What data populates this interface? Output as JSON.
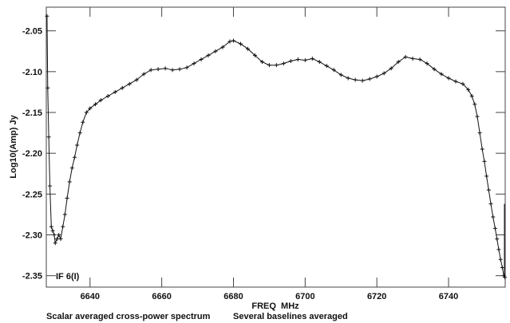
{
  "chart_data": {
    "type": "line",
    "title": "",
    "xlabel": "FREQ  MHz",
    "ylabel": "Log10(Amp) Jy",
    "annotation": "IF 6(I)",
    "footer_left": "Scalar averaged cross-power spectrum",
    "footer_right": "Several baselines averaged",
    "xlim": [
      6627.8,
      6755.8
    ],
    "ylim": [
      -2.364,
      -2.021
    ],
    "x_ticks": [
      6640,
      6660,
      6680,
      6700,
      6720,
      6740
    ],
    "x_tick_labels": [
      "6640",
      "6660",
      "6680",
      "6700",
      "6720",
      "6740"
    ],
    "y_ticks": [
      -2.05,
      -2.1,
      -2.15,
      -2.2,
      -2.25,
      -2.3,
      -2.35
    ],
    "y_tick_labels": [
      "-2.05",
      "-2.10",
      "-2.15",
      "-2.20",
      "-2.25",
      "-2.30",
      "-2.35"
    ],
    "grid": false,
    "series": [
      {
        "name": "IF 6(I)",
        "color": "#111111",
        "x": [
          6628.0,
          6628.2,
          6628.5,
          6628.8,
          6629.2,
          6629.6,
          6630.0,
          6630.3,
          6630.8,
          6631.3,
          6631.8,
          6632.4,
          6633.0,
          6633.6,
          6634.3,
          6635.0,
          6635.7,
          6636.4,
          6637.2,
          6638.0,
          6639.0,
          6640.0,
          6641.5,
          6643.0,
          6645.0,
          6647.0,
          6649.0,
          6651.0,
          6653.0,
          6655.0,
          6657.0,
          6659.0,
          6661.0,
          6663.0,
          6665.0,
          6667.0,
          6669.0,
          6671.0,
          6673.0,
          6675.0,
          6677.0,
          6679.0,
          6680.0,
          6682.0,
          6684.0,
          6686.0,
          6688.0,
          6690.0,
          6692.0,
          6694.0,
          6696.0,
          6698.0,
          6700.0,
          6702.0,
          6704.0,
          6706.0,
          6708.0,
          6710.0,
          6712.0,
          6714.0,
          6716.0,
          6718.0,
          6720.0,
          6722.0,
          6724.0,
          6726.0,
          6728.0,
          6730.0,
          6732.0,
          6734.0,
          6736.0,
          6738.0,
          6740.0,
          6742.0,
          6744.0,
          6745.5,
          6746.5,
          6747.3,
          6748.0,
          6748.7,
          6749.4,
          6750.0,
          6750.6,
          6751.2,
          6751.8,
          6752.4,
          6753.0,
          6753.5,
          6754.0,
          6754.5,
          6755.0,
          6755.4,
          6755.7
        ],
        "y": [
          -2.032,
          -2.12,
          -2.18,
          -2.24,
          -2.29,
          -2.295,
          -2.3,
          -2.31,
          -2.305,
          -2.3,
          -2.305,
          -2.29,
          -2.275,
          -2.255,
          -2.235,
          -2.218,
          -2.205,
          -2.19,
          -2.175,
          -2.162,
          -2.15,
          -2.145,
          -2.14,
          -2.135,
          -2.13,
          -2.125,
          -2.12,
          -2.115,
          -2.11,
          -2.103,
          -2.098,
          -2.097,
          -2.096,
          -2.098,
          -2.097,
          -2.095,
          -2.09,
          -2.085,
          -2.08,
          -2.075,
          -2.07,
          -2.063,
          -2.062,
          -2.066,
          -2.072,
          -2.08,
          -2.088,
          -2.092,
          -2.092,
          -2.09,
          -2.087,
          -2.085,
          -2.086,
          -2.084,
          -2.088,
          -2.093,
          -2.098,
          -2.104,
          -2.108,
          -2.11,
          -2.111,
          -2.109,
          -2.106,
          -2.102,
          -2.096,
          -2.088,
          -2.082,
          -2.084,
          -2.085,
          -2.09,
          -2.097,
          -2.103,
          -2.108,
          -2.112,
          -2.115,
          -2.122,
          -2.13,
          -2.14,
          -2.155,
          -2.175,
          -2.195,
          -2.21,
          -2.228,
          -2.245,
          -2.262,
          -2.278,
          -2.292,
          -2.305,
          -2.318,
          -2.33,
          -2.34,
          -2.35,
          -2.352
        ]
      }
    ]
  }
}
